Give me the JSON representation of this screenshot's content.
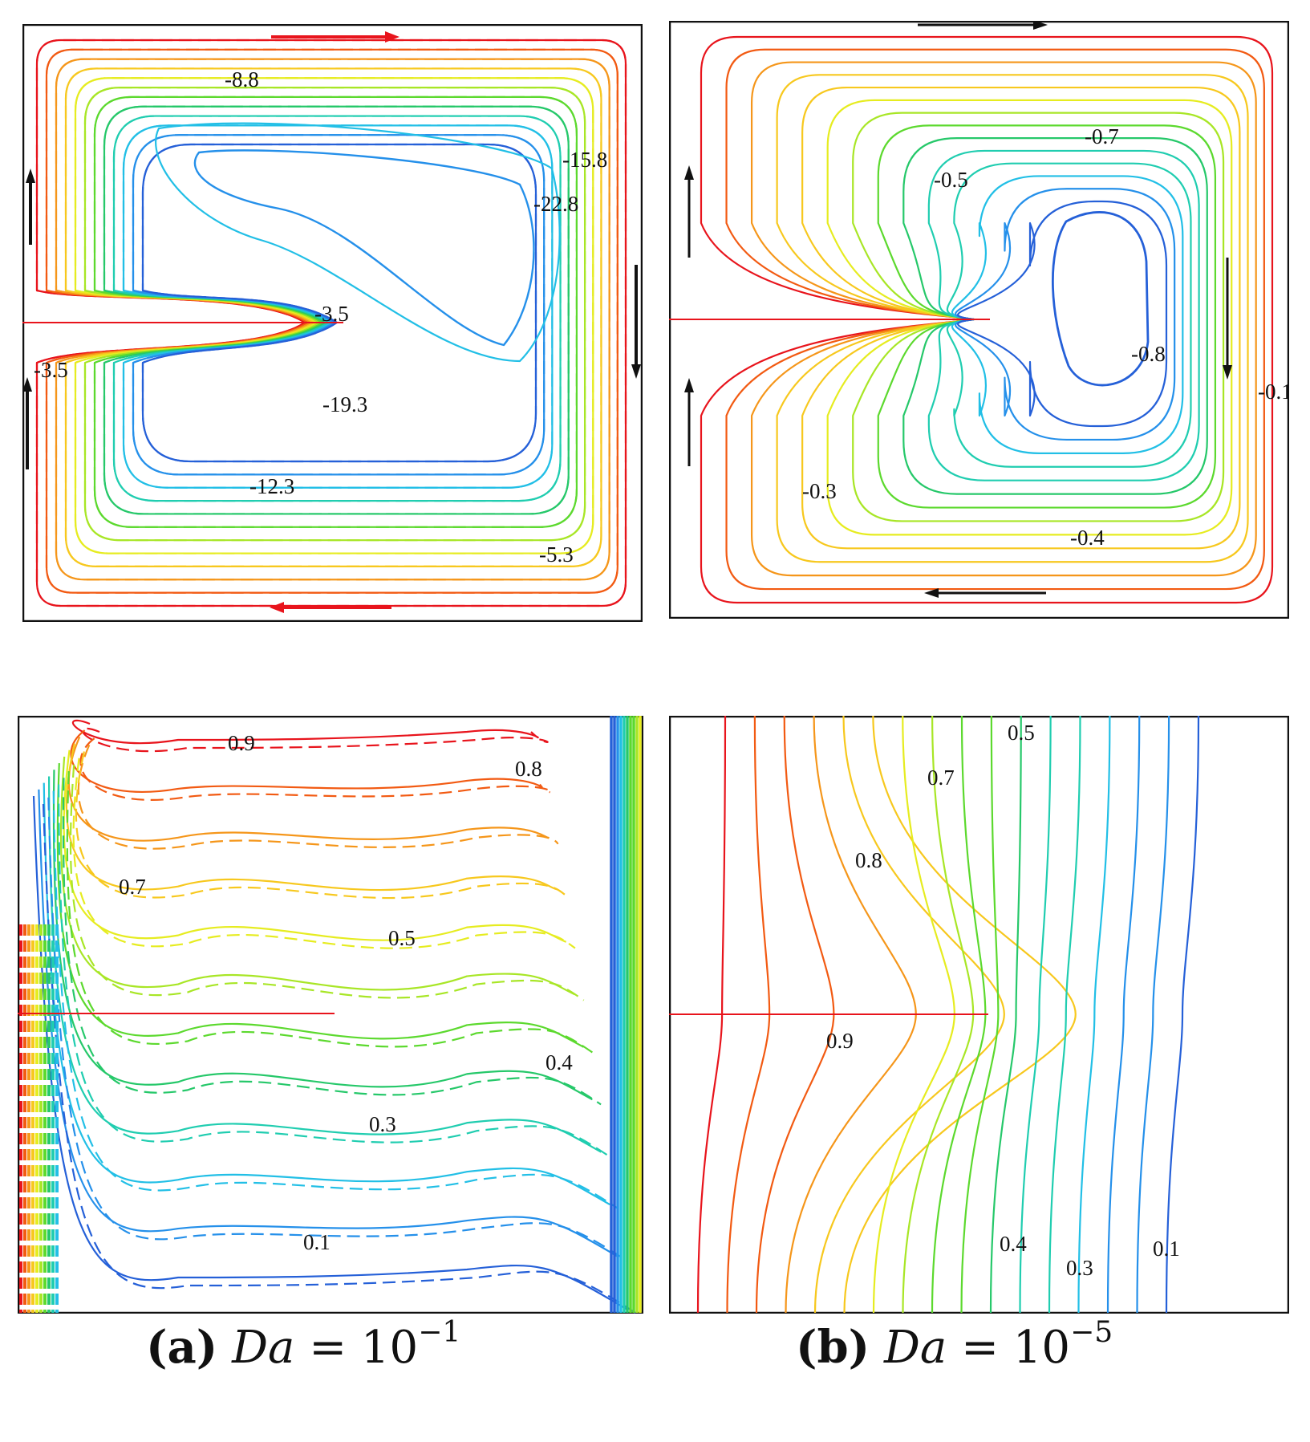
{
  "panels": {
    "tl": {
      "labels": [
        "-8.8",
        "-15.8",
        "-22.8",
        "-3.5",
        "-3.5",
        "-19.3",
        "-12.3",
        "-5.3"
      ]
    },
    "tr": {
      "labels": [
        "-0.7",
        "-0.5",
        "-0.8",
        "-0.1",
        "-0.3",
        "-0.4"
      ]
    },
    "bl": {
      "labels": [
        "0.9",
        "0.8",
        "0.7",
        "0.5",
        "0.4",
        "0.3",
        "0.1"
      ]
    },
    "br": {
      "labels": [
        "0.5",
        "0.7",
        "0.8",
        "0.9",
        "0.4",
        "0.3",
        "0.1"
      ]
    }
  },
  "captions": {
    "a": {
      "tag": "(a)",
      "var": "Da",
      "eq": "= 10",
      "exp": "−1"
    },
    "b": {
      "tag": "(b)",
      "var": "Da",
      "eq": "= 10",
      "exp": "−5"
    }
  },
  "colors": {
    "palette": [
      "#e8141c",
      "#f25a12",
      "#f5961a",
      "#f7c81e",
      "#e6ec20",
      "#a8e626",
      "#5cd92e",
      "#26c86a",
      "#20cdb0",
      "#22bfe6",
      "#2590ea",
      "#2560d8"
    ],
    "arrow_red": "#e8141c",
    "arrow_black": "#111111"
  }
}
